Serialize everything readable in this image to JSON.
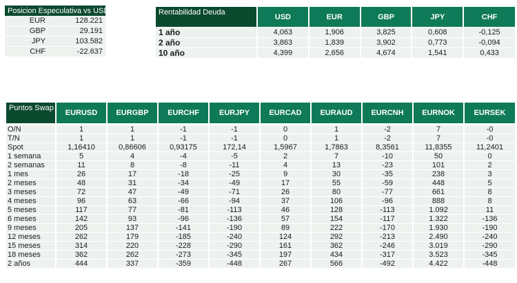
{
  "posicion": {
    "title": "Posicion Especulativa vs USD",
    "rows": [
      {
        "label": "EUR",
        "value": "128.221"
      },
      {
        "label": "GBP",
        "value": "29.191"
      },
      {
        "label": "JPY",
        "value": "103.582"
      },
      {
        "label": "CHF",
        "value": "-22.637"
      }
    ]
  },
  "rentabilidad": {
    "title": "Rentabilidad Deuda",
    "columns": [
      "USD",
      "EUR",
      "GBP",
      "JPY",
      "CHF"
    ],
    "rows": [
      {
        "label": "1 año",
        "values": [
          "4,063",
          "1,906",
          "3,825",
          "0,608",
          "-0,125"
        ]
      },
      {
        "label": "2 año",
        "values": [
          "3,863",
          "1,839",
          "3,902",
          "0,773",
          "-0,094"
        ]
      },
      {
        "label": "10 año",
        "values": [
          "4,399",
          "2,656",
          "4,674",
          "1,541",
          "0,433"
        ]
      }
    ]
  },
  "swap": {
    "title": "Puntos Swap",
    "columns": [
      "EURUSD",
      "EURGBP",
      "EURCHF",
      "EURJPY",
      "EURCAD",
      "EURAUD",
      "EURCNH",
      "EURNOK",
      "EURSEK"
    ],
    "rows": [
      {
        "label": "O/N",
        "values": [
          "1",
          "1",
          "-1",
          "-1",
          "0",
          "1",
          "-2",
          "7",
          "-0"
        ]
      },
      {
        "label": "T/N",
        "values": [
          "1",
          "1",
          "-1",
          "-1",
          "0",
          "1",
          "-2",
          "7",
          "-0"
        ]
      },
      {
        "label": "Spot",
        "values": [
          "1,16410",
          "0,86606",
          "0,93175",
          "172,14",
          "1,5967",
          "1,7863",
          "8,3561",
          "11,8355",
          "11,2401"
        ]
      },
      {
        "label": "1 semana",
        "values": [
          "5",
          "4",
          "-4",
          "-5",
          "2",
          "7",
          "-10",
          "50",
          "0"
        ]
      },
      {
        "label": "2 semanas",
        "values": [
          "11",
          "8",
          "-8",
          "-11",
          "4",
          "13",
          "-23",
          "101",
          "2"
        ]
      },
      {
        "label": "1 mes",
        "values": [
          "26",
          "17",
          "-18",
          "-25",
          "9",
          "30",
          "-35",
          "238",
          "3"
        ]
      },
      {
        "label": "2 meses",
        "values": [
          "48",
          "31",
          "-34",
          "-49",
          "17",
          "55",
          "-59",
          "448",
          "5"
        ]
      },
      {
        "label": "3 meses",
        "values": [
          "72",
          "47",
          "-49",
          "-71",
          "26",
          "80",
          "-77",
          "661",
          "8"
        ]
      },
      {
        "label": "4 meses",
        "values": [
          "96",
          "63",
          "-66",
          "-94",
          "37",
          "106",
          "-96",
          "888",
          "8"
        ]
      },
      {
        "label": "5 meses",
        "values": [
          "117",
          "77",
          "-81",
          "-113",
          "46",
          "128",
          "-113",
          "1.092",
          "11"
        ]
      },
      {
        "label": "6 meses",
        "values": [
          "142",
          "93",
          "-96",
          "-136",
          "57",
          "154",
          "-117",
          "1.322",
          "-136"
        ]
      },
      {
        "label": "9 meses",
        "values": [
          "205",
          "137",
          "-141",
          "-190",
          "89",
          "222",
          "-170",
          "1.930",
          "-190"
        ]
      },
      {
        "label": "12 meses",
        "values": [
          "262",
          "179",
          "-185",
          "-240",
          "124",
          "292",
          "-213",
          "2.490",
          "-240"
        ]
      },
      {
        "label": "15 meses",
        "values": [
          "314",
          "220",
          "-228",
          "-290",
          "161",
          "362",
          "-246",
          "3.019",
          "-290"
        ]
      },
      {
        "label": "18 meses",
        "values": [
          "362",
          "262",
          "-273",
          "-345",
          "197",
          "434",
          "-317",
          "3.523",
          "-345"
        ]
      },
      {
        "label": "2 años",
        "values": [
          "444",
          "337",
          "-359",
          "-448",
          "267",
          "566",
          "-492",
          "4.422",
          "-448"
        ]
      }
    ]
  }
}
